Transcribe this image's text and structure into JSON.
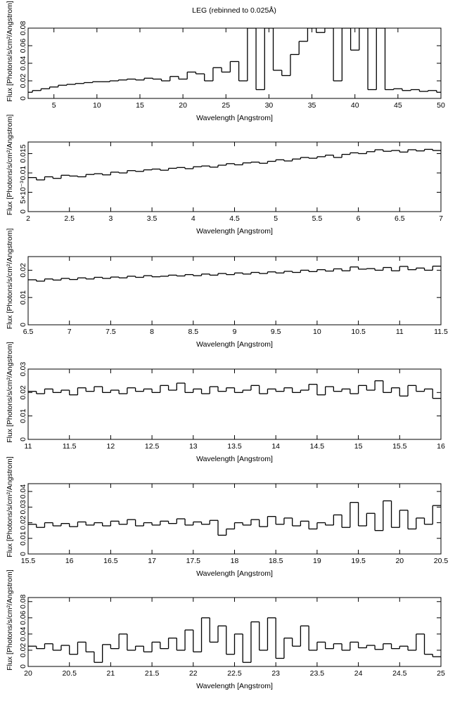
{
  "title": "LEG (rebinned to 0.025Å)",
  "chart_data": [
    {
      "type": "step",
      "x_label": "Wavelength [Angstrom]",
      "y_label": "Flux [Photons/s/cm²/Angstrom]",
      "xlim": [
        2,
        50
      ],
      "xticks": [
        5,
        10,
        15,
        20,
        25,
        30,
        35,
        40,
        45,
        50
      ],
      "ylim": [
        0,
        0.08
      ],
      "yticks": [
        0,
        0.02,
        0.04,
        0.06,
        0.08
      ],
      "x": [
        2,
        3,
        4,
        5,
        6,
        7,
        8,
        9,
        10,
        11,
        12,
        13,
        14,
        15,
        16,
        17,
        18,
        19,
        20,
        21,
        22,
        23,
        24,
        25,
        26,
        27,
        28,
        29,
        30,
        31,
        32,
        33,
        34,
        35,
        36,
        37,
        38,
        39,
        40,
        41,
        42,
        43,
        44,
        45,
        46,
        47,
        48,
        49,
        50
      ],
      "values": [
        0.007,
        0.009,
        0.011,
        0.013,
        0.015,
        0.016,
        0.017,
        0.018,
        0.019,
        0.019,
        0.02,
        0.021,
        0.022,
        0.021,
        0.023,
        0.022,
        0.02,
        0.025,
        0.022,
        0.03,
        0.028,
        0.02,
        0.035,
        0.03,
        0.042,
        0.02,
        0.08,
        0.01,
        0.08,
        0.032,
        0.026,
        0.05,
        0.065,
        0.08,
        0.075,
        0.08,
        0.02,
        0.08,
        0.055,
        0.08,
        0.01,
        0.08,
        0.01,
        0.011,
        0.009,
        0.01,
        0.008,
        0.009,
        0.007
      ]
    },
    {
      "type": "step",
      "x_label": "Wavelength [Angstrom]",
      "y_label": "Flux [Photons/s/cm²/Angstrom]",
      "xlim": [
        2,
        7
      ],
      "xticks": [
        2,
        2.5,
        3,
        3.5,
        4,
        4.5,
        5,
        5.5,
        6,
        6.5,
        7
      ],
      "ylim": [
        0,
        0.018
      ],
      "yticks": [
        0,
        {
          "value": 0.005,
          "label": "5×10⁻³"
        },
        0.01,
        0.015
      ],
      "x": [
        2.05,
        2.15,
        2.25,
        2.35,
        2.45,
        2.55,
        2.65,
        2.75,
        2.85,
        2.95,
        3.05,
        3.15,
        3.25,
        3.35,
        3.45,
        3.55,
        3.65,
        3.75,
        3.85,
        3.95,
        4.05,
        4.15,
        4.25,
        4.35,
        4.45,
        4.55,
        4.65,
        4.75,
        4.85,
        4.95,
        5.05,
        5.15,
        5.25,
        5.35,
        5.45,
        5.55,
        5.65,
        5.75,
        5.85,
        5.95,
        6.05,
        6.15,
        6.25,
        6.35,
        6.45,
        6.55,
        6.65,
        6.75,
        6.85,
        6.95
      ],
      "values": [
        0.0088,
        0.0082,
        0.009,
        0.0086,
        0.0094,
        0.0092,
        0.009,
        0.0096,
        0.0098,
        0.0095,
        0.0102,
        0.01,
        0.0106,
        0.0104,
        0.0108,
        0.011,
        0.0107,
        0.0112,
        0.0114,
        0.0111,
        0.0116,
        0.0118,
        0.0115,
        0.012,
        0.0124,
        0.0121,
        0.0126,
        0.0128,
        0.0125,
        0.013,
        0.0134,
        0.0131,
        0.0136,
        0.014,
        0.0138,
        0.0142,
        0.0146,
        0.014,
        0.0148,
        0.0152,
        0.015,
        0.0155,
        0.016,
        0.0156,
        0.0158,
        0.0154,
        0.016,
        0.0157,
        0.0161,
        0.0158
      ]
    },
    {
      "type": "step",
      "x_label": "Wavelength [Angstrom]",
      "y_label": "Flux [Photons/s/cm²/Angstrom]",
      "xlim": [
        6.5,
        11.5
      ],
      "xticks": [
        6.5,
        7,
        7.5,
        8,
        8.5,
        9,
        9.5,
        10,
        10.5,
        11,
        11.5
      ],
      "ylim": [
        0,
        0.025
      ],
      "yticks": [
        0,
        0.01,
        0.02
      ],
      "x": [
        6.55,
        6.65,
        6.75,
        6.85,
        6.95,
        7.05,
        7.15,
        7.25,
        7.35,
        7.45,
        7.55,
        7.65,
        7.75,
        7.85,
        7.95,
        8.05,
        8.15,
        8.25,
        8.35,
        8.45,
        8.55,
        8.65,
        8.75,
        8.85,
        8.95,
        9.05,
        9.15,
        9.25,
        9.35,
        9.45,
        9.55,
        9.65,
        9.75,
        9.85,
        9.95,
        10.05,
        10.15,
        10.25,
        10.35,
        10.45,
        10.55,
        10.65,
        10.75,
        10.85,
        10.95,
        11.05,
        11.15,
        11.25,
        11.35,
        11.45
      ],
      "values": [
        0.0165,
        0.016,
        0.0168,
        0.0164,
        0.017,
        0.0166,
        0.0172,
        0.0168,
        0.0174,
        0.017,
        0.0175,
        0.0172,
        0.0178,
        0.0174,
        0.018,
        0.0176,
        0.0178,
        0.0182,
        0.0179,
        0.0184,
        0.018,
        0.0186,
        0.0182,
        0.0188,
        0.0184,
        0.019,
        0.0186,
        0.0192,
        0.0188,
        0.0194,
        0.019,
        0.0196,
        0.0192,
        0.02,
        0.0195,
        0.0202,
        0.0197,
        0.0205,
        0.0198,
        0.0212,
        0.0204,
        0.0206,
        0.02,
        0.021,
        0.0198,
        0.0214,
        0.0202,
        0.0208,
        0.02,
        0.0215
      ]
    },
    {
      "type": "step",
      "x_label": "Wavelength [Angstrom]",
      "y_label": "Flux [Photons/s/cm²/Angstrom]",
      "xlim": [
        11,
        16
      ],
      "xticks": [
        11,
        11.5,
        12,
        12.5,
        13,
        13.5,
        14,
        14.5,
        15,
        15.5,
        16
      ],
      "ylim": [
        0,
        0.03
      ],
      "yticks": [
        0,
        0.01,
        0.02,
        0.03
      ],
      "x": [
        11.05,
        11.15,
        11.25,
        11.35,
        11.45,
        11.55,
        11.65,
        11.75,
        11.85,
        11.95,
        12.05,
        12.15,
        12.25,
        12.35,
        12.45,
        12.55,
        12.65,
        12.75,
        12.85,
        12.95,
        13.05,
        13.15,
        13.25,
        13.35,
        13.45,
        13.55,
        13.65,
        13.75,
        13.85,
        13.95,
        14.05,
        14.15,
        14.25,
        14.35,
        14.45,
        14.55,
        14.65,
        14.75,
        14.85,
        14.95,
        15.05,
        15.15,
        15.25,
        15.35,
        15.45,
        15.55,
        15.65,
        15.75,
        15.85,
        15.95
      ],
      "values": [
        0.0205,
        0.0195,
        0.0215,
        0.02,
        0.021,
        0.019,
        0.022,
        0.0205,
        0.0225,
        0.02,
        0.021,
        0.0195,
        0.022,
        0.0205,
        0.0215,
        0.02,
        0.023,
        0.021,
        0.024,
        0.02,
        0.0215,
        0.0195,
        0.0225,
        0.0205,
        0.022,
        0.02,
        0.021,
        0.023,
        0.0195,
        0.0215,
        0.0205,
        0.022,
        0.02,
        0.021,
        0.0235,
        0.019,
        0.0225,
        0.0205,
        0.0215,
        0.0195,
        0.023,
        0.021,
        0.025,
        0.02,
        0.022,
        0.0185,
        0.023,
        0.0205,
        0.0215,
        0.0175
      ]
    },
    {
      "type": "step",
      "x_label": "Wavelength [Angstrom]",
      "y_label": "Flux [Photons/s/cm²/Angstrom]",
      "xlim": [
        15.5,
        20.5
      ],
      "xticks": [
        15.5,
        16,
        16.5,
        17,
        17.5,
        18,
        18.5,
        19,
        19.5,
        20,
        20.5
      ],
      "ylim": [
        0,
        0.045
      ],
      "yticks": [
        0,
        0.01,
        0.02,
        0.03,
        0.04
      ],
      "x": [
        15.55,
        15.65,
        15.75,
        15.85,
        15.95,
        16.05,
        16.15,
        16.25,
        16.35,
        16.45,
        16.55,
        16.65,
        16.75,
        16.85,
        16.95,
        17.05,
        17.15,
        17.25,
        17.35,
        17.45,
        17.55,
        17.65,
        17.75,
        17.85,
        17.95,
        18.05,
        18.15,
        18.25,
        18.35,
        18.45,
        18.55,
        18.65,
        18.75,
        18.85,
        18.95,
        19.05,
        19.15,
        19.25,
        19.35,
        19.45,
        19.55,
        19.65,
        19.75,
        19.85,
        19.95,
        20.05,
        20.15,
        20.25,
        20.35,
        20.45
      ],
      "values": [
        0.019,
        0.017,
        0.02,
        0.018,
        0.0195,
        0.0175,
        0.0205,
        0.0185,
        0.02,
        0.018,
        0.021,
        0.019,
        0.022,
        0.018,
        0.02,
        0.0185,
        0.021,
        0.0195,
        0.0225,
        0.0185,
        0.0205,
        0.019,
        0.0215,
        0.012,
        0.016,
        0.02,
        0.0185,
        0.022,
        0.0175,
        0.024,
        0.019,
        0.023,
        0.018,
        0.021,
        0.016,
        0.02,
        0.0185,
        0.025,
        0.017,
        0.033,
        0.018,
        0.026,
        0.015,
        0.034,
        0.017,
        0.028,
        0.016,
        0.023,
        0.019,
        0.031
      ]
    },
    {
      "type": "step",
      "x_label": "Wavelength [Angstrom]",
      "y_label": "Flux [Photons/s/cm²/Angstrom]",
      "xlim": [
        20,
        25
      ],
      "xticks": [
        20,
        20.5,
        21,
        21.5,
        22,
        22.5,
        23,
        23.5,
        24,
        24.5,
        25
      ],
      "ylim": [
        0,
        0.085
      ],
      "yticks": [
        0,
        0.02,
        0.04,
        0.06,
        0.08
      ],
      "x": [
        20.05,
        20.15,
        20.25,
        20.35,
        20.45,
        20.55,
        20.65,
        20.75,
        20.85,
        20.95,
        21.05,
        21.15,
        21.25,
        21.35,
        21.45,
        21.55,
        21.65,
        21.75,
        21.85,
        21.95,
        22.05,
        22.15,
        22.25,
        22.35,
        22.45,
        22.55,
        22.65,
        22.75,
        22.85,
        22.95,
        23.05,
        23.15,
        23.25,
        23.35,
        23.45,
        23.55,
        23.65,
        23.75,
        23.85,
        23.95,
        24.05,
        24.15,
        24.25,
        24.35,
        24.45,
        24.55,
        24.65,
        24.75,
        24.85,
        24.95
      ],
      "values": [
        0.025,
        0.022,
        0.028,
        0.02,
        0.026,
        0.015,
        0.03,
        0.018,
        0.005,
        0.027,
        0.022,
        0.04,
        0.02,
        0.025,
        0.018,
        0.03,
        0.022,
        0.035,
        0.02,
        0.045,
        0.018,
        0.06,
        0.03,
        0.05,
        0.015,
        0.04,
        0.005,
        0.055,
        0.02,
        0.06,
        0.01,
        0.035,
        0.025,
        0.05,
        0.02,
        0.03,
        0.022,
        0.028,
        0.02,
        0.03,
        0.023,
        0.026,
        0.021,
        0.028,
        0.022,
        0.025,
        0.02,
        0.04,
        0.015,
        0.012
      ]
    }
  ]
}
